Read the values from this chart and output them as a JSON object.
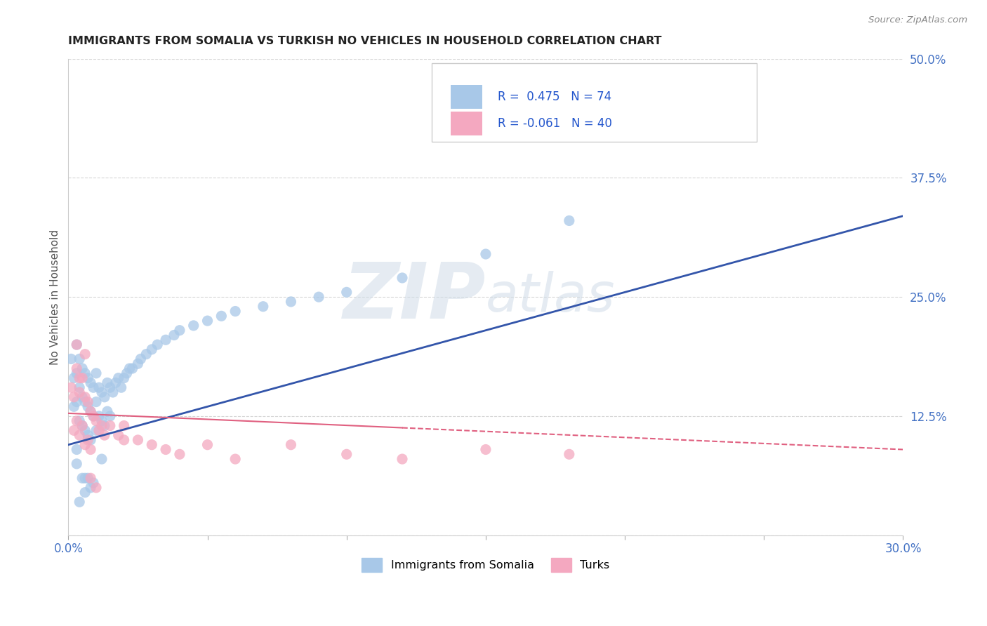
{
  "title": "IMMIGRANTS FROM SOMALIA VS TURKISH NO VEHICLES IN HOUSEHOLD CORRELATION CHART",
  "source": "Source: ZipAtlas.com",
  "ylabel": "No Vehicles in Household",
  "xlim": [
    0.0,
    0.3
  ],
  "ylim": [
    0.0,
    0.5
  ],
  "xticks": [
    0.0,
    0.05,
    0.1,
    0.15,
    0.2,
    0.25,
    0.3
  ],
  "xticklabels": [
    "0.0%",
    "",
    "",
    "",
    "",
    "",
    "30.0%"
  ],
  "yticks": [
    0.0,
    0.125,
    0.25,
    0.375,
    0.5
  ],
  "yticklabels": [
    "",
    "12.5%",
    "25.0%",
    "37.5%",
    "50.0%"
  ],
  "watermark_zip": "ZIP",
  "watermark_atlas": "atlas",
  "legend_somalia": "Immigrants from Somalia",
  "legend_turks": "Turks",
  "r_somalia": 0.475,
  "n_somalia": 74,
  "r_turks": -0.061,
  "n_turks": 40,
  "color_somalia": "#a8c8e8",
  "color_turks": "#f4a8c0",
  "color_line_somalia": "#3355aa",
  "color_line_turks": "#e06080",
  "background_color": "#ffffff",
  "grid_color": "#cccccc",
  "title_color": "#222222",
  "axis_label_color": "#555555",
  "tick_label_color": "#4472c4",
  "somalia_x": [
    0.001,
    0.002,
    0.002,
    0.003,
    0.003,
    0.003,
    0.004,
    0.004,
    0.004,
    0.005,
    0.005,
    0.005,
    0.006,
    0.006,
    0.006,
    0.007,
    0.007,
    0.007,
    0.008,
    0.008,
    0.008,
    0.009,
    0.009,
    0.01,
    0.01,
    0.01,
    0.011,
    0.011,
    0.012,
    0.012,
    0.013,
    0.013,
    0.014,
    0.014,
    0.015,
    0.015,
    0.016,
    0.017,
    0.018,
    0.019,
    0.02,
    0.021,
    0.022,
    0.023,
    0.025,
    0.026,
    0.028,
    0.03,
    0.032,
    0.035,
    0.038,
    0.04,
    0.045,
    0.05,
    0.055,
    0.06,
    0.07,
    0.08,
    0.09,
    0.1,
    0.12,
    0.15,
    0.18,
    0.003,
    0.005,
    0.007,
    0.009,
    0.012,
    0.003,
    0.006,
    0.004,
    0.14,
    0.006,
    0.008
  ],
  "somalia_y": [
    0.185,
    0.165,
    0.135,
    0.2,
    0.17,
    0.14,
    0.185,
    0.155,
    0.12,
    0.175,
    0.145,
    0.115,
    0.17,
    0.14,
    0.11,
    0.165,
    0.135,
    0.105,
    0.16,
    0.13,
    0.1,
    0.155,
    0.125,
    0.17,
    0.14,
    0.11,
    0.155,
    0.125,
    0.15,
    0.12,
    0.145,
    0.115,
    0.16,
    0.13,
    0.155,
    0.125,
    0.15,
    0.16,
    0.165,
    0.155,
    0.165,
    0.17,
    0.175,
    0.175,
    0.18,
    0.185,
    0.19,
    0.195,
    0.2,
    0.205,
    0.21,
    0.215,
    0.22,
    0.225,
    0.23,
    0.235,
    0.24,
    0.245,
    0.25,
    0.255,
    0.27,
    0.295,
    0.33,
    0.09,
    0.06,
    0.06,
    0.055,
    0.08,
    0.075,
    0.06,
    0.035,
    0.46,
    0.045,
    0.05
  ],
  "turks_x": [
    0.001,
    0.002,
    0.002,
    0.003,
    0.003,
    0.004,
    0.004,
    0.005,
    0.005,
    0.006,
    0.006,
    0.007,
    0.007,
    0.008,
    0.008,
    0.009,
    0.01,
    0.011,
    0.012,
    0.013,
    0.015,
    0.018,
    0.02,
    0.025,
    0.03,
    0.035,
    0.04,
    0.05,
    0.06,
    0.08,
    0.1,
    0.12,
    0.15,
    0.18,
    0.003,
    0.006,
    0.004,
    0.008,
    0.01,
    0.02
  ],
  "turks_y": [
    0.155,
    0.145,
    0.11,
    0.175,
    0.12,
    0.15,
    0.105,
    0.165,
    0.115,
    0.145,
    0.095,
    0.14,
    0.1,
    0.13,
    0.09,
    0.125,
    0.12,
    0.11,
    0.115,
    0.105,
    0.115,
    0.105,
    0.115,
    0.1,
    0.095,
    0.09,
    0.085,
    0.095,
    0.08,
    0.095,
    0.085,
    0.08,
    0.09,
    0.085,
    0.2,
    0.19,
    0.165,
    0.06,
    0.05,
    0.1
  ],
  "somalia_line_x0": 0.0,
  "somalia_line_y0": 0.095,
  "somalia_line_x1": 0.3,
  "somalia_line_y1": 0.335,
  "turks_line_x0": 0.0,
  "turks_line_y0": 0.128,
  "turks_line_x1": 0.3,
  "turks_line_y1": 0.09
}
